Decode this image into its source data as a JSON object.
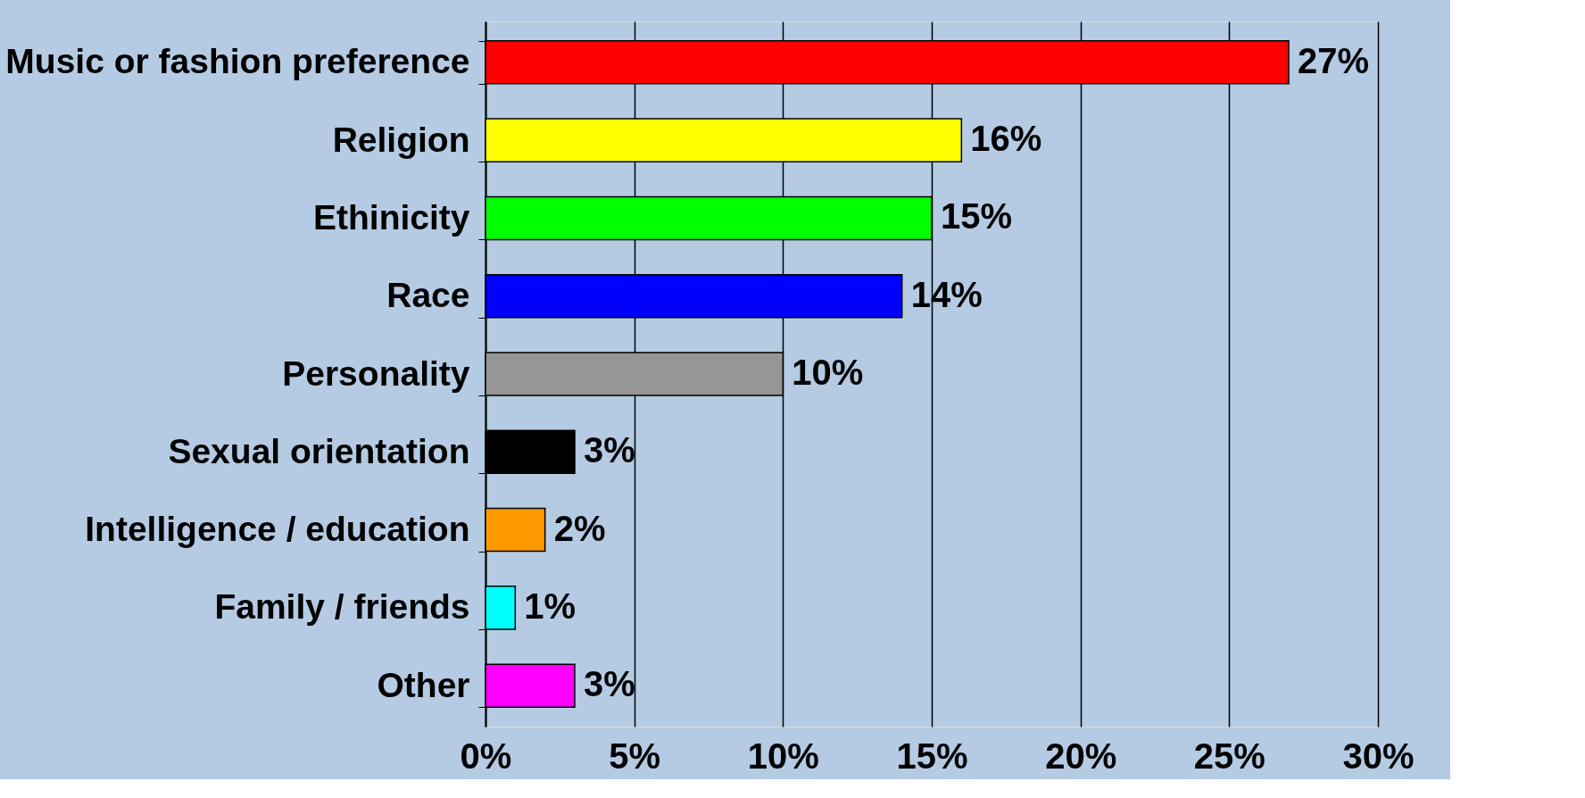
{
  "chart_data": {
    "type": "bar",
    "orientation": "horizontal",
    "categories": [
      "Music or fashion preference",
      "Religion",
      "Ethinicity",
      "Race",
      "Personality",
      "Sexual orientation",
      "Intelligence / education",
      "Family / friends",
      "Other"
    ],
    "values": [
      27,
      16,
      15,
      14,
      10,
      3,
      2,
      1,
      3
    ],
    "colors": [
      "#ff0000",
      "#ffff00",
      "#00ff00",
      "#0000ff",
      "#969696",
      "#000000",
      "#ff9900",
      "#00ffff",
      "#ff00ff"
    ],
    "value_labels": [
      "27%",
      "16%",
      "15%",
      "14%",
      "10%",
      "3%",
      "2%",
      "1%",
      "3%"
    ],
    "xlim": [
      0,
      30
    ],
    "xticks": [
      {
        "value": 0,
        "label": "0%"
      },
      {
        "value": 5,
        "label": "5%"
      },
      {
        "value": 10,
        "label": "10%"
      },
      {
        "value": 15,
        "label": "15%"
      },
      {
        "value": 20,
        "label": "20%"
      },
      {
        "value": 25,
        "label": "25%"
      },
      {
        "value": 30,
        "label": "30%"
      }
    ],
    "grid": "x"
  }
}
